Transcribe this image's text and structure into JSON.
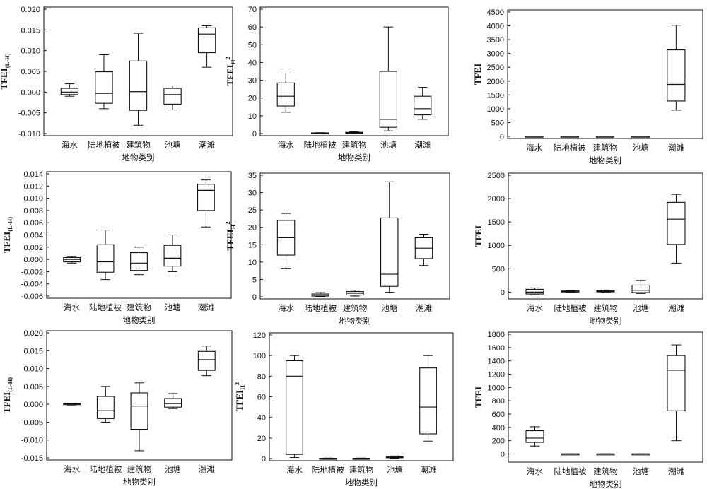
{
  "chart_data": [
    {
      "type": "boxplot",
      "ylabel": "TFEI",
      "ylabel_sub": "(L-H)",
      "ylabel_sup": "",
      "xlabel": "地物类别",
      "categories": [
        "海水",
        "陆地植被",
        "建筑物",
        "池塘",
        "潮滩"
      ],
      "ylim": [
        -0.01,
        0.02
      ],
      "yticks": [
        -0.01,
        -0.005,
        0,
        0.005,
        0.01,
        0.015,
        0.02
      ],
      "yticklabels": [
        "-0.010",
        "-0.005",
        "0.000",
        "0.005",
        "0.010",
        "0.015",
        "0.020"
      ],
      "boxes": [
        {
          "min": -0.001,
          "q1": -0.0006,
          "median": 0.0,
          "q3": 0.0009,
          "max": 0.002
        },
        {
          "min": -0.004,
          "q1": -0.0027,
          "median": -0.0003,
          "q3": 0.0049,
          "max": 0.009
        },
        {
          "min": -0.008,
          "q1": -0.0044,
          "median": 0.0001,
          "q3": 0.0075,
          "max": 0.0142
        },
        {
          "min": -0.0043,
          "q1": -0.0029,
          "median": -0.0006,
          "q3": 0.0009,
          "max": 0.0015
        },
        {
          "min": 0.006,
          "q1": 0.0095,
          "median": 0.014,
          "q3": 0.0155,
          "max": 0.016
        }
      ]
    },
    {
      "type": "boxplot",
      "ylabel": "TFEI",
      "ylabel_sub": "H",
      "ylabel_sup": "2",
      "xlabel": "地物类别",
      "categories": [
        "海水",
        "陆地植被",
        "建筑物",
        "池塘",
        "潮滩"
      ],
      "ylim": [
        0,
        70
      ],
      "yticks": [
        0,
        10,
        20,
        30,
        40,
        50,
        60,
        70
      ],
      "yticklabels": [
        "0",
        "10",
        "20",
        "30",
        "40",
        "50",
        "60",
        "70"
      ],
      "boxes": [
        {
          "min": 12,
          "q1": 15.5,
          "median": 21,
          "q3": 28.5,
          "max": 34
        },
        {
          "min": 0,
          "q1": 0.1,
          "median": 0.2,
          "q3": 0.4,
          "max": 0.5
        },
        {
          "min": 0,
          "q1": 0.2,
          "median": 0.4,
          "q3": 0.7,
          "max": 1
        },
        {
          "min": 1.5,
          "q1": 3.5,
          "median": 8,
          "q3": 35,
          "max": 60
        },
        {
          "min": 8,
          "q1": 10.5,
          "median": 14,
          "q3": 21,
          "max": 26
        }
      ]
    },
    {
      "type": "boxplot",
      "ylabel": "TFEI",
      "ylabel_sub": "",
      "ylabel_sup": "",
      "xlabel": "地物类别",
      "categories": [
        "海水",
        "陆地植被",
        "建筑物",
        "池塘",
        "潮滩"
      ],
      "ylim": [
        0,
        4500
      ],
      "yticks": [
        0,
        500,
        1000,
        1500,
        2000,
        2500,
        3000,
        3500,
        4000,
        4500
      ],
      "yticklabels": [
        "0",
        "500",
        "1000",
        "1500",
        "2000",
        "2500",
        "3000",
        "3500",
        "4000",
        "4500"
      ],
      "boxes": [
        {
          "min": 0,
          "q1": 2,
          "median": 5,
          "q3": 8,
          "max": 12
        },
        {
          "min": 0,
          "q1": 2,
          "median": 5,
          "q3": 8,
          "max": 12
        },
        {
          "min": 0,
          "q1": 2,
          "median": 5,
          "q3": 8,
          "max": 12
        },
        {
          "min": 0,
          "q1": 2,
          "median": 5,
          "q3": 8,
          "max": 12
        },
        {
          "min": 950,
          "q1": 1280,
          "median": 1880,
          "q3": 3130,
          "max": 4020
        }
      ]
    },
    {
      "type": "boxplot",
      "ylabel": "TFEI",
      "ylabel_sub": "(L-H)",
      "ylabel_sup": "",
      "xlabel": "地物类别",
      "categories": [
        "海水",
        "陆地植被",
        "建筑物",
        "池塘",
        "潮滩"
      ],
      "ylim": [
        -0.006,
        0.014
      ],
      "yticks": [
        -0.006,
        -0.004,
        -0.002,
        0,
        0.002,
        0.004,
        0.006,
        0.008,
        0.01,
        0.012,
        0.014
      ],
      "yticklabels": [
        "-0.006",
        "-0.004",
        "-0.002",
        "0.000",
        "0.002",
        "0.004",
        "0.006",
        "0.008",
        "0.010",
        "0.012",
        "0.014"
      ],
      "boxes": [
        {
          "min": -0.0006,
          "q1": -0.0004,
          "median": 0.0,
          "q3": 0.0003,
          "max": 0.0005
        },
        {
          "min": -0.0033,
          "q1": -0.0021,
          "median": -0.0004,
          "q3": 0.0024,
          "max": 0.0048
        },
        {
          "min": -0.0025,
          "q1": -0.0018,
          "median": -0.0006,
          "q3": 0.0011,
          "max": 0.002
        },
        {
          "min": -0.002,
          "q1": -0.0011,
          "median": 0.0002,
          "q3": 0.0023,
          "max": 0.004
        },
        {
          "min": 0.0053,
          "q1": 0.008,
          "median": 0.0113,
          "q3": 0.0123,
          "max": 0.013
        }
      ]
    },
    {
      "type": "boxplot",
      "ylabel": "TFEI",
      "ylabel_sub": "H",
      "ylabel_sup": "2",
      "xlabel": "地物类别",
      "categories": [
        "海水",
        "陆地植被",
        "建筑物",
        "池塘",
        "潮滩"
      ],
      "ylim": [
        0,
        35
      ],
      "yticks": [
        0,
        5,
        10,
        15,
        20,
        25,
        30,
        35
      ],
      "yticklabels": [
        "0",
        "5",
        "10",
        "15",
        "20",
        "25",
        "30",
        "35"
      ],
      "boxes": [
        {
          "min": 8.2,
          "q1": 12,
          "median": 17,
          "q3": 22,
          "max": 24
        },
        {
          "min": 0,
          "q1": 0.2,
          "median": 0.5,
          "q3": 0.8,
          "max": 1.2
        },
        {
          "min": 0.2,
          "q1": 0.5,
          "median": 1,
          "q3": 1.5,
          "max": 1.9
        },
        {
          "min": 1.3,
          "q1": 3,
          "median": 6.5,
          "q3": 22.7,
          "max": 33.1
        },
        {
          "min": 9,
          "q1": 11,
          "median": 14,
          "q3": 17,
          "max": 18
        }
      ]
    },
    {
      "type": "boxplot",
      "ylabel": "TFEI",
      "ylabel_sub": "",
      "ylabel_sup": "",
      "xlabel": "地物类别",
      "categories": [
        "海水",
        "陆地植被",
        "建筑物",
        "池塘",
        "潮滩"
      ],
      "ylim": [
        -100,
        2500
      ],
      "yticks": [
        0,
        500,
        1000,
        1500,
        2000,
        2500
      ],
      "yticklabels": [
        "0",
        "500",
        "1000",
        "1500",
        "2000",
        "2500"
      ],
      "boxes": [
        {
          "min": -60,
          "q1": -40,
          "median": 0,
          "q3": 60,
          "max": 90
        },
        {
          "min": 0,
          "q1": 5,
          "median": 15,
          "q3": 25,
          "max": 30
        },
        {
          "min": 0,
          "q1": 5,
          "median": 15,
          "q3": 30,
          "max": 45
        },
        {
          "min": -30,
          "q1": -10,
          "median": 40,
          "q3": 150,
          "max": 250
        },
        {
          "min": 620,
          "q1": 1020,
          "median": 1560,
          "q3": 1920,
          "max": 2090
        }
      ]
    },
    {
      "type": "boxplot",
      "ylabel": "TFEI",
      "ylabel_sub": "(L-H)",
      "ylabel_sup": "",
      "xlabel": "地物类别",
      "categories": [
        "海水",
        "陆地植被",
        "建筑物",
        "池塘",
        "潮滩"
      ],
      "ylim": [
        -0.015,
        0.02
      ],
      "yticks": [
        -0.015,
        -0.01,
        -0.005,
        0,
        0.005,
        0.01,
        0.015,
        0.02
      ],
      "yticklabels": [
        "-0.015",
        "-0.010",
        "-0.005",
        "0.000",
        "0.005",
        "0.010",
        "0.015",
        "0.020"
      ],
      "boxes": [
        {
          "min": -0.0002,
          "q1": -0.0001,
          "median": 0.0001,
          "q3": 0.0002,
          "max": 0.0003
        },
        {
          "min": -0.005,
          "q1": -0.004,
          "median": -0.0018,
          "q3": 0.0022,
          "max": 0.005
        },
        {
          "min": -0.013,
          "q1": -0.007,
          "median": -0.0005,
          "q3": 0.0032,
          "max": 0.006
        },
        {
          "min": -0.0012,
          "q1": -0.0008,
          "median": 0.0002,
          "q3": 0.0016,
          "max": 0.003
        },
        {
          "min": 0.008,
          "q1": 0.0095,
          "median": 0.0125,
          "q3": 0.0148,
          "max": 0.0163
        }
      ]
    },
    {
      "type": "boxplot",
      "ylabel": "TFEI",
      "ylabel_sub": "H",
      "ylabel_sup": "2",
      "xlabel": "地物类别",
      "categories": [
        "海水",
        "陆地植被",
        "建筑物",
        "池塘",
        "潮滩"
      ],
      "ylim": [
        0,
        120
      ],
      "yticks": [
        0,
        20,
        40,
        60,
        80,
        100,
        120
      ],
      "yticklabels": [
        "0",
        "20",
        "40",
        "60",
        "80",
        "100",
        "120"
      ],
      "boxes": [
        {
          "min": 1,
          "q1": 4,
          "median": 80,
          "q3": 95,
          "max": 100
        },
        {
          "min": 0,
          "q1": 0.1,
          "median": 0.2,
          "q3": 0.3,
          "max": 0.5
        },
        {
          "min": 0,
          "q1": 0.1,
          "median": 0.2,
          "q3": 0.3,
          "max": 0.5
        },
        {
          "min": 0.3,
          "q1": 0.8,
          "median": 1.2,
          "q3": 1.8,
          "max": 2.5
        },
        {
          "min": 17,
          "q1": 24,
          "median": 50,
          "q3": 88,
          "max": 100
        }
      ]
    },
    {
      "type": "boxplot",
      "ylabel": "TFEI",
      "ylabel_sub": "",
      "ylabel_sup": "",
      "xlabel": "地物类别",
      "categories": [
        "海水",
        "陆地植被",
        "建筑物",
        "池塘",
        "潮滩"
      ],
      "ylim": [
        -90,
        1800
      ],
      "yticks": [
        0,
        200,
        400,
        600,
        800,
        1000,
        1200,
        1400,
        1600,
        1800
      ],
      "yticklabels": [
        "0",
        "200",
        "400",
        "600",
        "800",
        "1000",
        "1200",
        "1400",
        "1600",
        "1800"
      ],
      "boxes": [
        {
          "min": 120,
          "q1": 175,
          "median": 240,
          "q3": 350,
          "max": 410
        },
        {
          "min": 0,
          "q1": 0,
          "median": 1,
          "q3": 2,
          "max": 3
        },
        {
          "min": 0,
          "q1": 0,
          "median": 1,
          "q3": 2,
          "max": 3
        },
        {
          "min": 0,
          "q1": 0,
          "median": 1,
          "q3": 2,
          "max": 3
        },
        {
          "min": 200,
          "q1": 650,
          "median": 1260,
          "q3": 1480,
          "max": 1640
        }
      ]
    }
  ]
}
